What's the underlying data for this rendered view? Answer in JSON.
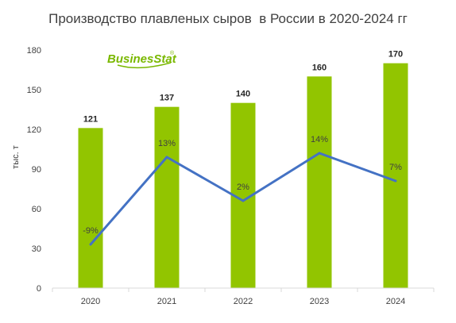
{
  "title": "Производство плавленых сыров  в России в 2020-2024 гг",
  "logo": {
    "main": "BusinesStat",
    "reg": "®"
  },
  "colors": {
    "bar": "#92c500",
    "line": "#4472c4",
    "axis": "#d9d9d9",
    "text": "#404040"
  },
  "chart_data": {
    "type": "bar",
    "categories": [
      "2020",
      "2021",
      "2022",
      "2023",
      "2024"
    ],
    "series": [
      {
        "values": [
          121,
          137,
          140,
          160,
          170
        ]
      },
      {
        "type": "line",
        "values": [
          -9,
          13,
          2,
          14,
          7
        ]
      }
    ],
    "value_labels": [
      "121",
      "137",
      "140",
      "160",
      "170"
    ],
    "growth_labels": [
      "-9%",
      "13%",
      "2%",
      "14%",
      "7%"
    ],
    "ylabel": "тыс. т",
    "ylim": [
      0,
      180
    ],
    "yticks": [
      0,
      30,
      60,
      90,
      120,
      150,
      180
    ],
    "growth_axis": [
      -20,
      40
    ],
    "grid": false,
    "legend": "none"
  }
}
